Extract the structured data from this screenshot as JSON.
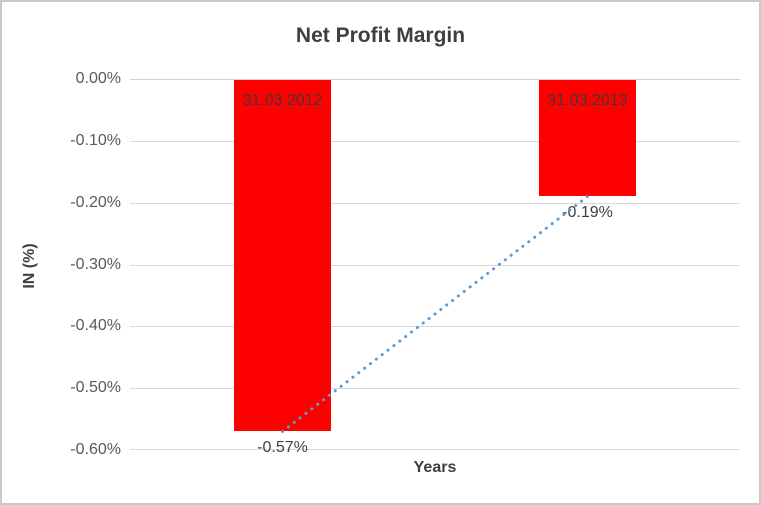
{
  "chart_data": {
    "type": "bar",
    "title": "Net Profit Margin",
    "xlabel": "Years",
    "ylabel": "IN (%)",
    "categories": [
      "31.03.2012",
      "31.03.2013"
    ],
    "values": [
      -0.57,
      -0.19
    ],
    "value_labels": [
      "-0.57%",
      "-0.19%"
    ],
    "ylim": [
      -0.6,
      0
    ],
    "ytick_labels": [
      "0.00%",
      "-0.10%",
      "-0.20%",
      "-0.30%",
      "-0.40%",
      "-0.50%",
      "-0.60%"
    ],
    "grid": true,
    "legend": "none",
    "colors": {
      "bar": "#FF0000",
      "trendline": "#5B9BD5",
      "gridline": "#D9D9D9",
      "title_text": "#3F3F3F",
      "tick_text": "#595959",
      "frame_border": "#C8C8C8"
    },
    "trendline": {
      "style": "dotted",
      "from_value": -0.57,
      "to_value": -0.19
    }
  }
}
